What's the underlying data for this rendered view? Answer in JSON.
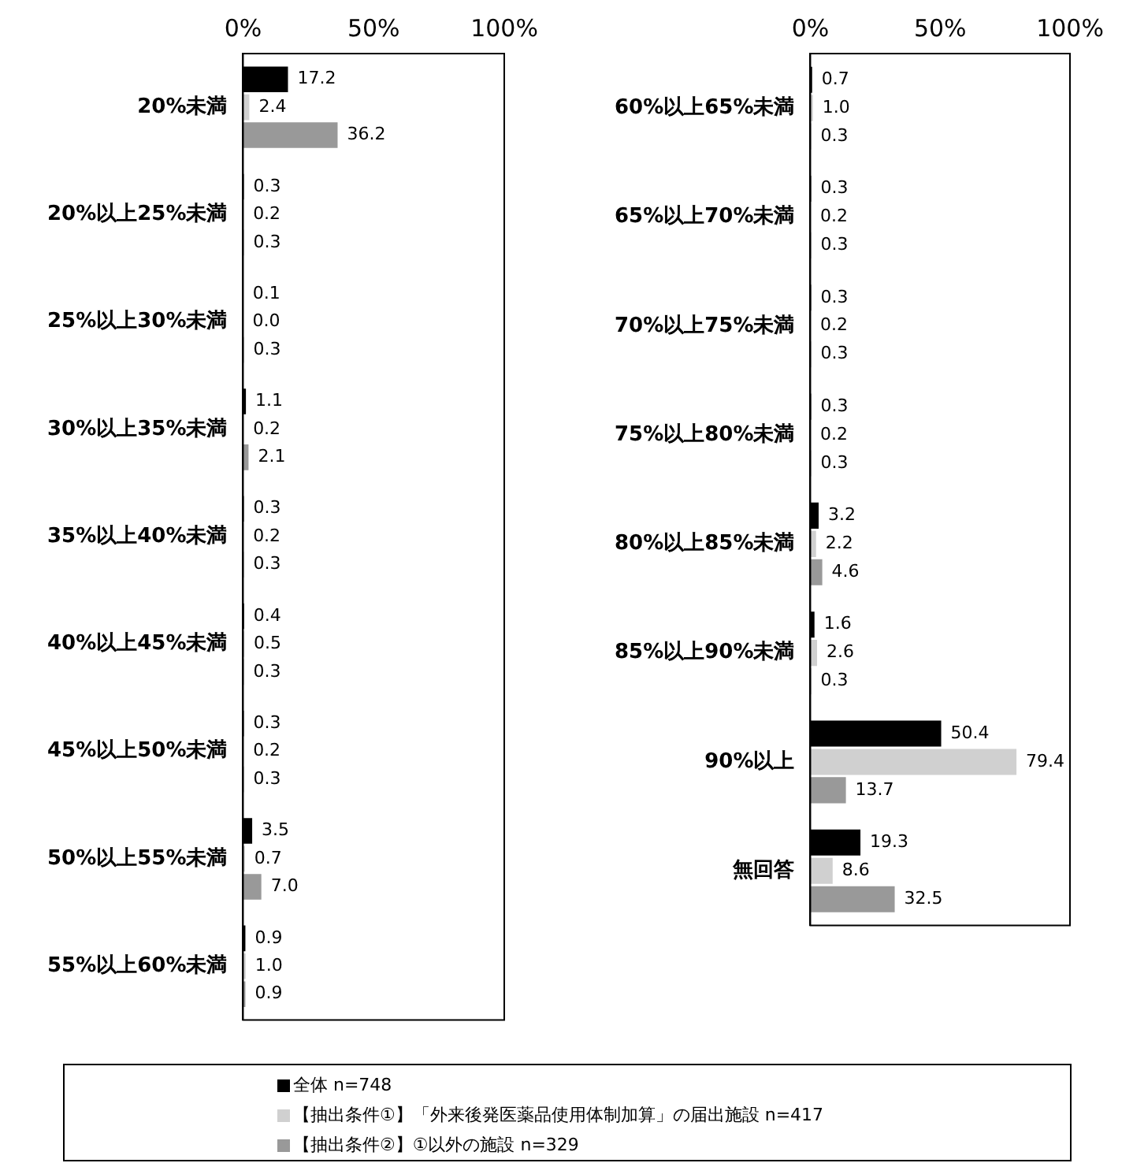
{
  "chart_data": [
    {
      "type": "bar",
      "orientation": "horizontal",
      "categories": [
        "20%未満",
        "20%以上25%未満",
        "25%以上30%未満",
        "30%以上35%未満",
        "35%以上40%未満",
        "40%以上45%未満",
        "45%以上50%未満",
        "50%以上55%未満",
        "55%以上60%未満"
      ],
      "xlim": [
        0,
        100
      ],
      "xticks": [
        {
          "value": 0,
          "label": "0%"
        },
        {
          "value": 50,
          "label": "50%"
        },
        {
          "value": 100,
          "label": "100%"
        }
      ],
      "grid": false,
      "legend": "bottom",
      "series": [
        {
          "name": "全体 n=748",
          "color": "#000000",
          "values": [
            17.2,
            0.3,
            0.1,
            1.1,
            0.3,
            0.4,
            0.3,
            3.5,
            0.9
          ],
          "value_labels": [
            "17.2",
            "0.3",
            "0.1",
            "1.1",
            "0.3",
            "0.4",
            "0.3",
            "3.5",
            "0.9"
          ]
        },
        {
          "name": "【抽出条件①】「外来後発医薬品使用体制加算」の届出施設 n=417",
          "color": "#d0d0d0",
          "values": [
            2.4,
            0.2,
            0.0,
            0.2,
            0.2,
            0.5,
            0.2,
            0.7,
            1.0
          ],
          "value_labels": [
            "2.4",
            "0.2",
            "0.0",
            "0.2",
            "0.2",
            "0.5",
            "0.2",
            "0.7",
            "1.0"
          ]
        },
        {
          "name": "【抽出条件②】①以外の施設 n=329",
          "color": "#999999",
          "values": [
            36.2,
            0.3,
            0.3,
            2.1,
            0.3,
            0.3,
            0.3,
            7.0,
            0.9
          ],
          "value_labels": [
            "36.2",
            "0.3",
            "0.3",
            "2.1",
            "0.3",
            "0.3",
            "0.3",
            "7.0",
            "0.9"
          ]
        }
      ]
    },
    {
      "type": "bar",
      "orientation": "horizontal",
      "categories": [
        "60%以上65%未満",
        "65%以上70%未満",
        "70%以上75%未満",
        "75%以上80%未満",
        "80%以上85%未満",
        "85%以上90%未満",
        "90%以上",
        "無回答"
      ],
      "xlim": [
        0,
        100
      ],
      "xticks": [
        {
          "value": 0,
          "label": "0%"
        },
        {
          "value": 50,
          "label": "50%"
        },
        {
          "value": 100,
          "label": "100%"
        }
      ],
      "grid": false,
      "series": [
        {
          "color": "#000000",
          "values": [
            0.7,
            0.3,
            0.3,
            0.3,
            3.2,
            1.6,
            50.4,
            19.3
          ],
          "value_labels": [
            "0.7",
            "0.3",
            "0.3",
            "0.3",
            "3.2",
            "1.6",
            "50.4",
            "19.3"
          ]
        },
        {
          "color": "#d0d0d0",
          "values": [
            1.0,
            0.2,
            0.2,
            0.2,
            2.2,
            2.6,
            79.4,
            8.6
          ],
          "value_labels": [
            "1.0",
            "0.2",
            "0.2",
            "0.2",
            "2.2",
            "2.6",
            "79.4",
            "8.6"
          ]
        },
        {
          "color": "#999999",
          "values": [
            0.3,
            0.3,
            0.3,
            0.3,
            4.6,
            0.3,
            13.7,
            32.5
          ],
          "value_labels": [
            "0.3",
            "0.3",
            "0.3",
            "0.3",
            "4.6",
            "0.3",
            "13.7",
            "32.5"
          ]
        }
      ]
    }
  ]
}
